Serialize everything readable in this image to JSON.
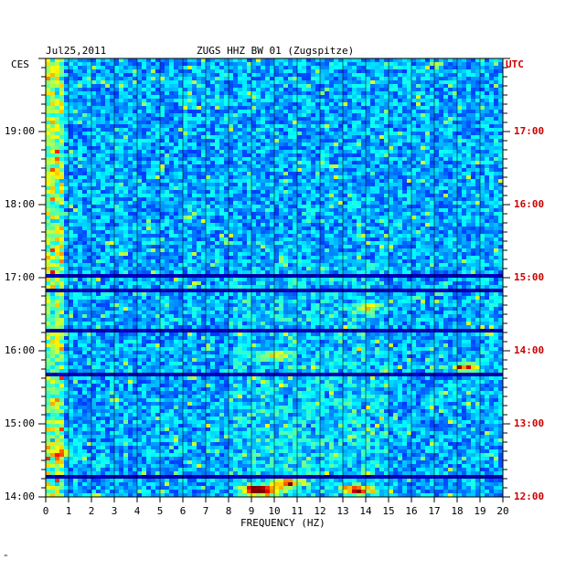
{
  "header": {
    "date": "Jul25,2011",
    "title": "ZUGS HHZ BW 01 (Zugspitze)"
  },
  "left_timezone": "CES",
  "right_timezone": "UTC",
  "footer_mark": "\"",
  "colors": {
    "utc_labels": "#cc0000",
    "background": "#ffffff",
    "spectrogram_low": "#0000a0",
    "spectrogram_high": "#ff0000"
  },
  "chart_data": {
    "type": "heatmap",
    "title": "ZUGS HHZ BW 01 (Zugspitze)",
    "xlabel": "FREQUENCY (HZ)",
    "ylabel": "",
    "x_ticks": [
      "0",
      "1",
      "2",
      "3",
      "4",
      "5",
      "6",
      "7",
      "8",
      "9",
      "10",
      "11",
      "12",
      "13",
      "14",
      "15",
      "16",
      "17",
      "18",
      "19",
      "20"
    ],
    "xlim": [
      0,
      20
    ],
    "y_ticks_left": [
      "19:00",
      "18:00",
      "17:00",
      "16:00",
      "15:00",
      "14:00"
    ],
    "y_ticks_right": [
      "17:00",
      "16:00",
      "15:00",
      "14:00",
      "13:00",
      "12:00"
    ],
    "ylim_local": [
      "14:00",
      "19:50"
    ],
    "colormap": "jet",
    "grid": true,
    "hot_spots": [
      {
        "freq": 9.5,
        "time_utc": "12:07",
        "level": "high"
      },
      {
        "freq": 10.5,
        "time_utc": "12:13",
        "level": "high"
      },
      {
        "freq": 13.5,
        "time_utc": "12:07",
        "level": "high"
      },
      {
        "freq": 9.0,
        "time_utc": "12:07",
        "level": "high"
      },
      {
        "freq": 18.3,
        "time_utc": "13:48",
        "level": "high"
      },
      {
        "freq": 0.7,
        "time_utc": "12:37",
        "level": "medium"
      },
      {
        "freq": 14.0,
        "time_utc": "14:38",
        "level": "medium"
      },
      {
        "freq": 10.0,
        "time_utc": "13:58",
        "level": "medium"
      }
    ]
  }
}
